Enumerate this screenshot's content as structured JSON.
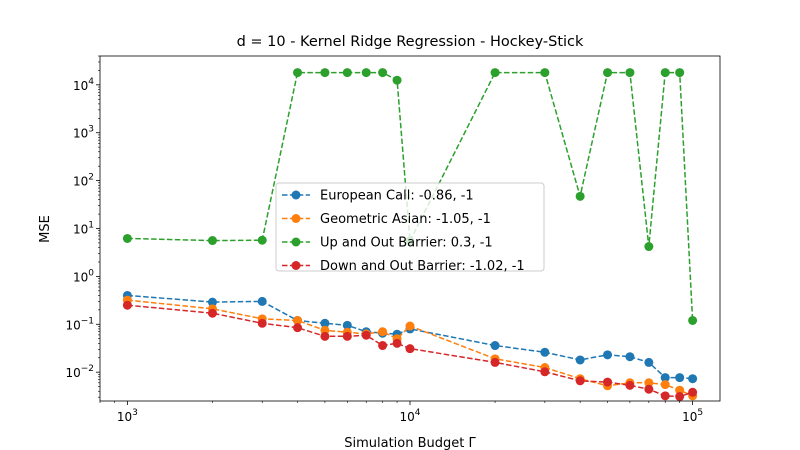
{
  "chart_data": {
    "type": "line",
    "title": "d = 10 - Kernel Ridge Regression - Hockey-Stick",
    "xlabel": "Simulation Budget Γ",
    "ylabel": "MSE",
    "xscale": "log",
    "yscale": "log",
    "xlim": [
      800,
      125000
    ],
    "ylim": [
      0.0025,
      40000
    ],
    "xticks": [
      {
        "value": 1000,
        "base": "10",
        "exp": "3"
      },
      {
        "value": 10000,
        "base": "10",
        "exp": "4"
      },
      {
        "value": 100000,
        "base": "10",
        "exp": "5"
      }
    ],
    "yticks": [
      {
        "value": 0.01,
        "base": "10",
        "exp": "−2"
      },
      {
        "value": 0.1,
        "base": "10",
        "exp": "−1"
      },
      {
        "value": 1,
        "base": "10",
        "exp": "0"
      },
      {
        "value": 10,
        "base": "10",
        "exp": "1"
      },
      {
        "value": 100,
        "base": "10",
        "exp": "2"
      },
      {
        "value": 1000,
        "base": "10",
        "exp": "3"
      },
      {
        "value": 10000,
        "base": "10",
        "exp": "4"
      }
    ],
    "grid": false,
    "legend_position": "center",
    "series": [
      {
        "name": "European Call: -0.86, -1",
        "color": "#1f77b4",
        "x": [
          1000,
          2000,
          3000,
          4000,
          5000,
          6000,
          7000,
          8000,
          9000,
          10000,
          20000,
          30000,
          40000,
          50000,
          60000,
          70000,
          80000,
          90000,
          100000
        ],
        "y": [
          0.4,
          0.29,
          0.3,
          0.12,
          0.105,
          0.095,
          0.07,
          0.065,
          0.062,
          0.08,
          0.036,
          0.026,
          0.018,
          0.023,
          0.021,
          0.016,
          0.0077,
          0.0077,
          0.0073
        ]
      },
      {
        "name": "Geometric Asian: -1.05, -1",
        "color": "#ff7f0e",
        "x": [
          1000,
          2000,
          3000,
          4000,
          5000,
          6000,
          7000,
          8000,
          9000,
          10000,
          20000,
          30000,
          40000,
          50000,
          60000,
          70000,
          80000,
          90000,
          100000
        ],
        "y": [
          0.32,
          0.21,
          0.13,
          0.12,
          0.075,
          0.068,
          0.063,
          0.07,
          0.05,
          0.092,
          0.019,
          0.0125,
          0.0073,
          0.0052,
          0.006,
          0.006,
          0.0055,
          0.0042,
          0.0032
        ]
      },
      {
        "name": "Up and Out Barrier: 0.3, -1",
        "color": "#2ca02c",
        "x": [
          1000,
          2000,
          3000,
          4000,
          5000,
          6000,
          7000,
          8000,
          9000,
          10000,
          20000,
          30000,
          40000,
          50000,
          60000,
          70000,
          80000,
          90000,
          100000
        ],
        "y": [
          6.2,
          5.6,
          5.7,
          18000,
          18000,
          18000,
          18000,
          18000,
          12500,
          5.5,
          18000,
          18000,
          47,
          18000,
          18000,
          4.2,
          18000,
          18000,
          0.12
        ]
      },
      {
        "name": "Down and Out Barrier: -1.02, -1",
        "color": "#d62728",
        "x": [
          1000,
          2000,
          3000,
          4000,
          5000,
          6000,
          7000,
          8000,
          9000,
          10000,
          20000,
          30000,
          40000,
          50000,
          60000,
          70000,
          80000,
          90000,
          100000
        ],
        "y": [
          0.25,
          0.17,
          0.105,
          0.085,
          0.056,
          0.056,
          0.059,
          0.036,
          0.04,
          0.031,
          0.016,
          0.0102,
          0.0066,
          0.0062,
          0.0053,
          0.0044,
          0.0032,
          0.0031,
          0.0038
        ]
      }
    ]
  }
}
